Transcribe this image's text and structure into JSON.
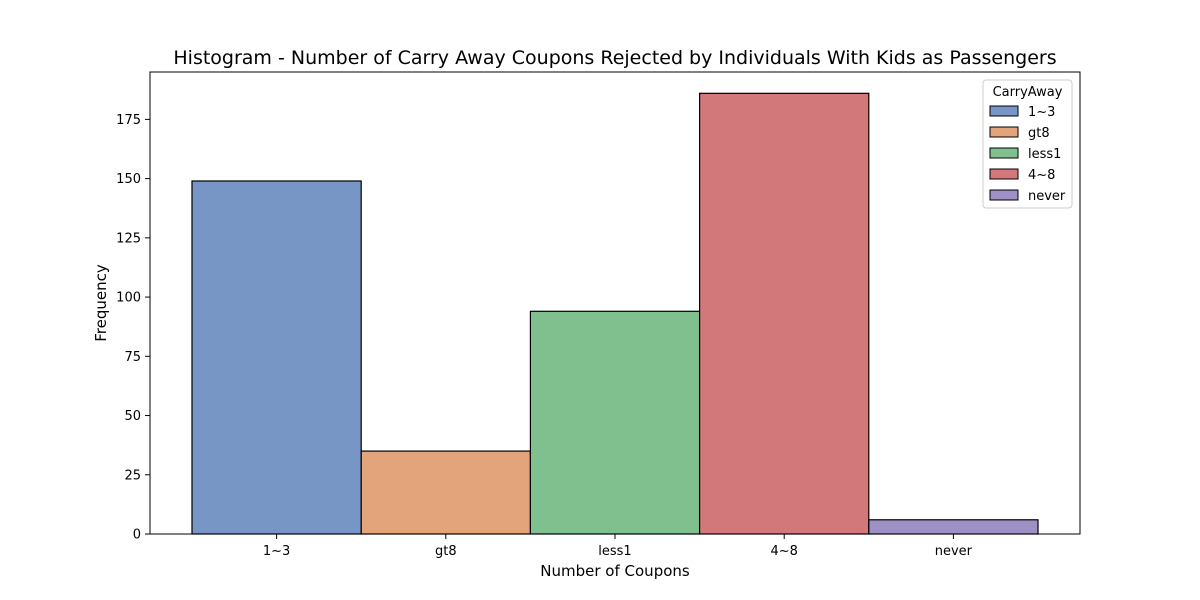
{
  "chart_data": {
    "type": "bar",
    "title": "Histogram - Number of Carry Away Coupons Rejected by Individuals With Kids as Passengers",
    "xlabel": "Number of Coupons",
    "ylabel": "Frequency",
    "categories": [
      "1~3",
      "gt8",
      "less1",
      "4~8",
      "never"
    ],
    "values": [
      149,
      35,
      94,
      186,
      6
    ],
    "ylim": [
      0,
      195
    ],
    "yticks": [
      0,
      25,
      50,
      75,
      100,
      125,
      150,
      175
    ],
    "grid": false,
    "legend": {
      "title": "CarryAway",
      "placement": "top-right",
      "entries": [
        "1~3",
        "gt8",
        "less1",
        "4~8",
        "never"
      ]
    },
    "colors": [
      "#7896c5",
      "#e3a47c",
      "#80bf8e",
      "#d2787a",
      "#9e90c4"
    ],
    "edge_color": "#000000"
  }
}
